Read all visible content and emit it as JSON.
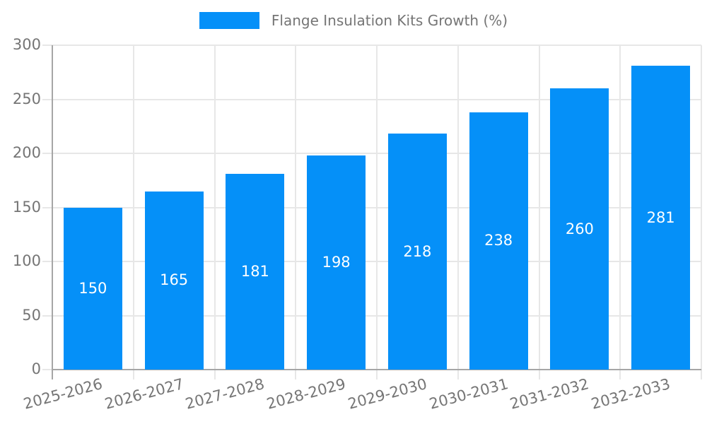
{
  "chart_data": {
    "type": "bar",
    "title": "Flange Insulation Kits Growth (%)",
    "categories": [
      "2025-2026",
      "2026-2027",
      "2027-2028",
      "2028-2029",
      "2029-2030",
      "2030-2031",
      "2031-2032",
      "2032-2033"
    ],
    "values": [
      150,
      165,
      181,
      198,
      218,
      238,
      260,
      281
    ],
    "xlabel": "",
    "ylabel": "",
    "ylim": [
      0,
      300
    ],
    "yticks": [
      0,
      50,
      100,
      150,
      200,
      250,
      300
    ],
    "grid": true,
    "legend_position": "top-center",
    "bar_value_labels_inside": true,
    "colors": {
      "bar": "#0590f8",
      "bar_value_text": "#ffffff",
      "tick_text": "#757575",
      "legend_text": "#757575",
      "gridline": "#e7e7e7",
      "axis_line": "#a6a6a6",
      "background": "#ffffff"
    }
  }
}
